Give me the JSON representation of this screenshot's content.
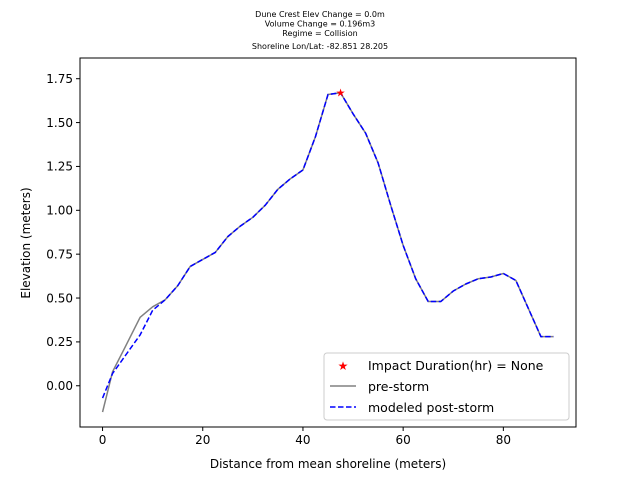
{
  "title_lines": [
    "Dune Crest Elev Change = 0.0m",
    "Volume Change = 0.196m3",
    "Regime = Collision",
    "Shoreline Lon/Lat: -82.851 28.205"
  ],
  "chart_data": {
    "type": "line",
    "xlabel": "Distance from mean shoreline (meters)",
    "ylabel": "Elevation (meters)",
    "xlim": [
      -4.5,
      94.5
    ],
    "ylim": [
      -0.235,
      1.868
    ],
    "xticks": [
      0,
      20,
      40,
      60,
      80
    ],
    "yticks": [
      0.0,
      0.25,
      0.5,
      0.75,
      1.0,
      1.25,
      1.5,
      1.75
    ],
    "grid": false,
    "legend_position": "lower-right",
    "series": [
      {
        "name": "Impact Duration(hr) = None",
        "kind": "marker",
        "color": "#ff0000",
        "x": [
          47.5
        ],
        "y": [
          1.67
        ]
      },
      {
        "name": "pre-storm",
        "kind": "solid",
        "color": "#808080",
        "x": [
          0,
          2,
          4.5,
          7.5,
          10,
          12.5,
          15,
          17.5,
          20,
          22.5,
          25,
          27.5,
          30,
          32.5,
          35,
          37.5,
          40,
          42.5,
          45,
          47.5,
          50,
          52.5,
          55,
          57.5,
          60,
          62.5,
          65,
          67.5,
          70,
          72.5,
          75,
          77.5,
          80,
          82.5,
          85,
          87.5,
          90
        ],
        "y": [
          -0.15,
          0.08,
          0.22,
          0.39,
          0.45,
          0.49,
          0.57,
          0.68,
          0.72,
          0.76,
          0.85,
          0.91,
          0.96,
          1.03,
          1.12,
          1.18,
          1.23,
          1.42,
          1.66,
          1.67,
          1.55,
          1.44,
          1.27,
          1.03,
          0.8,
          0.61,
          0.48,
          0.48,
          0.54,
          0.58,
          0.61,
          0.62,
          0.64,
          0.6,
          0.44,
          0.28,
          0.28
        ]
      },
      {
        "name": "modeled post-storm",
        "kind": "dashed",
        "color": "#0000ff",
        "x": [
          0,
          2,
          4.5,
          7.5,
          10,
          12.5,
          15,
          17.5,
          20,
          22.5,
          25,
          27.5,
          30,
          32.5,
          35,
          37.5,
          40,
          42.5,
          45,
          47.5,
          50,
          52.5,
          55,
          57.5,
          60,
          62.5,
          65,
          67.5,
          70,
          72.5,
          75,
          77.5,
          80,
          82.5,
          85,
          87.5,
          90
        ],
        "y": [
          -0.07,
          0.07,
          0.17,
          0.29,
          0.43,
          0.49,
          0.57,
          0.68,
          0.72,
          0.76,
          0.85,
          0.91,
          0.96,
          1.03,
          1.12,
          1.18,
          1.23,
          1.42,
          1.66,
          1.67,
          1.55,
          1.44,
          1.27,
          1.03,
          0.8,
          0.61,
          0.48,
          0.48,
          0.54,
          0.58,
          0.61,
          0.62,
          0.64,
          0.6,
          0.44,
          0.28,
          0.28
        ]
      }
    ]
  }
}
